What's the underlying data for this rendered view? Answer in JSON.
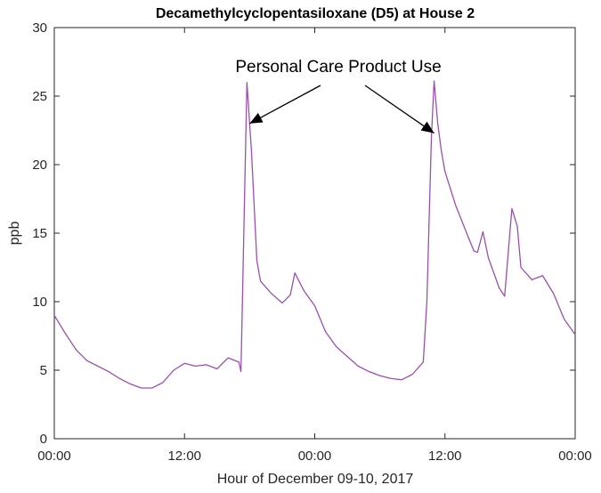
{
  "chart_data": {
    "type": "line",
    "title": "Decamethylcyclopentasiloxane (D5) at House 2",
    "xlabel": "Hour of December 09-10, 2017",
    "ylabel": "ppb",
    "xlim": [
      "2017-12-09 00:00",
      "2017-12-11 00:00"
    ],
    "ylim": [
      0,
      30
    ],
    "xticks": [
      "00:00",
      "12:00",
      "00:00",
      "12:00",
      "00:00"
    ],
    "yticks": [
      0,
      5,
      10,
      15,
      20,
      25,
      30
    ],
    "grid": false,
    "line_color": "#9b4fb0",
    "annotation": {
      "text": "Personal Care Product Use",
      "targets": [
        {
          "x": "2017-12-09 18:00",
          "y": 23
        },
        {
          "x": "2017-12-10 11:00",
          "y": 22.3
        }
      ]
    },
    "series": [
      {
        "x": [
          "2017-12-09 00:00",
          "2017-12-09 01:00",
          "2017-12-09 02:00",
          "2017-12-09 03:00",
          "2017-12-09 04:00",
          "2017-12-09 05:00",
          "2017-12-09 06:00",
          "2017-12-09 07:00",
          "2017-12-09 08:00",
          "2017-12-09 09:00",
          "2017-12-09 10:00",
          "2017-12-09 11:00",
          "2017-12-09 12:00",
          "2017-12-09 13:00",
          "2017-12-09 14:00",
          "2017-12-09 15:00",
          "2017-12-09 16:00",
          "2017-12-09 17:00",
          "2017-12-09 17:12",
          "2017-12-09 17:45",
          "2017-12-09 18:10",
          "2017-12-09 18:40",
          "2017-12-09 19:00",
          "2017-12-09 20:00",
          "2017-12-09 21:00",
          "2017-12-09 21:45",
          "2017-12-09 22:10",
          "2017-12-09 23:00",
          "2017-12-10 00:00",
          "2017-12-10 01:00",
          "2017-12-10 02:00",
          "2017-12-10 03:00",
          "2017-12-10 04:00",
          "2017-12-10 05:00",
          "2017-12-10 06:00",
          "2017-12-10 07:00",
          "2017-12-10 08:00",
          "2017-12-10 09:00",
          "2017-12-10 10:00",
          "2017-12-10 10:20",
          "2017-12-10 10:45",
          "2017-12-10 11:00",
          "2017-12-10 11:20",
          "2017-12-10 11:40",
          "2017-12-10 12:00",
          "2017-12-10 13:00",
          "2017-12-10 14:00",
          "2017-12-10 14:40",
          "2017-12-10 15:00",
          "2017-12-10 15:30",
          "2017-12-10 16:00",
          "2017-12-10 17:00",
          "2017-12-10 17:30",
          "2017-12-10 18:10",
          "2017-12-10 18:40",
          "2017-12-10 19:00",
          "2017-12-10 20:00",
          "2017-12-10 21:00",
          "2017-12-10 22:00",
          "2017-12-10 23:00",
          "2017-12-11 00:00"
        ],
        "values": [
          9.0,
          7.7,
          6.5,
          5.7,
          5.3,
          4.9,
          4.4,
          4.0,
          3.7,
          3.7,
          4.1,
          5.0,
          5.5,
          5.3,
          5.4,
          5.1,
          5.9,
          5.6,
          4.9,
          26.0,
          21.0,
          13.0,
          11.5,
          10.6,
          9.9,
          10.5,
          12.1,
          10.8,
          9.7,
          7.8,
          6.7,
          6.0,
          5.3,
          4.9,
          4.6,
          4.4,
          4.3,
          4.7,
          5.6,
          10.0,
          22.0,
          26.1,
          23.0,
          21.0,
          19.5,
          17.0,
          15.0,
          13.7,
          13.6,
          15.1,
          13.2,
          11.0,
          10.4,
          16.8,
          15.5,
          12.5,
          11.6,
          11.9,
          10.6,
          8.7,
          7.6
        ]
      }
    ]
  }
}
